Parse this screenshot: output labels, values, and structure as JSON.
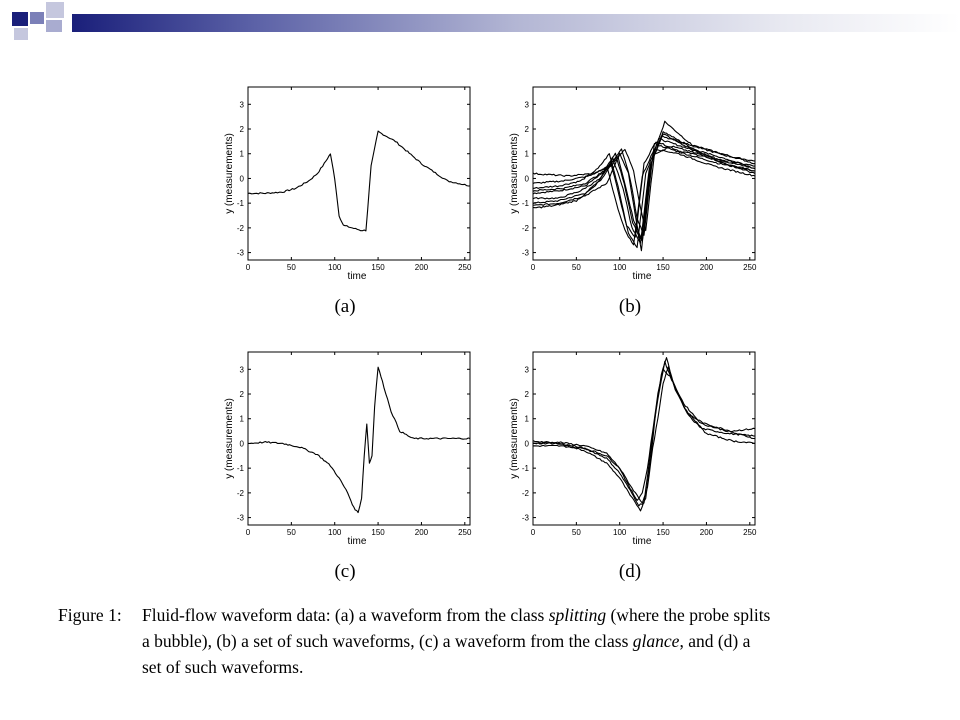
{
  "colors": {
    "header_dark": "#1a1f7a",
    "header_mid": "#7b80b8",
    "header_light": "#c5c7de",
    "ink": "#000000"
  },
  "chart_data": [
    {
      "id": "a",
      "type": "line",
      "panel_label": "(a)",
      "xlabel": "time",
      "ylabel": "y (measurements)",
      "xlim": [
        0,
        256
      ],
      "ylim": [
        -3.3,
        3.7
      ],
      "xticks": [
        0,
        50,
        100,
        150,
        200,
        250
      ],
      "yticks": [
        -3,
        -2,
        -1,
        0,
        1,
        2,
        3
      ],
      "series": [
        {
          "x": [
            0,
            20,
            40,
            55,
            70,
            80,
            88,
            95,
            100,
            105,
            110,
            120,
            130,
            136,
            142,
            150,
            170,
            200,
            230,
            256
          ],
          "y": [
            -0.6,
            -0.6,
            -0.55,
            -0.4,
            -0.1,
            0.2,
            0.6,
            1.0,
            0.0,
            -1.5,
            -1.9,
            -2.0,
            -2.1,
            -2.1,
            0.5,
            1.9,
            1.5,
            0.6,
            -0.1,
            -0.3
          ]
        }
      ]
    },
    {
      "id": "b",
      "type": "line",
      "panel_label": "(b)",
      "xlabel": "time",
      "ylabel": "y (measurements)",
      "xlim": [
        0,
        256
      ],
      "ylim": [
        -3.3,
        3.7
      ],
      "xticks": [
        0,
        50,
        100,
        150,
        200,
        250
      ],
      "yticks": [
        -3,
        -2,
        -1,
        0,
        1,
        2,
        3
      ],
      "series": [
        {
          "x": [
            0,
            30,
            60,
            80,
            95,
            105,
            115,
            125,
            135,
            150,
            180,
            220,
            256
          ],
          "y": [
            -0.6,
            -0.5,
            -0.3,
            0.2,
            1.0,
            -0.2,
            -1.8,
            -2.5,
            0.5,
            1.9,
            1.3,
            0.6,
            0.3
          ]
        },
        {
          "x": [
            0,
            30,
            60,
            80,
            90,
            100,
            110,
            120,
            130,
            145,
            180,
            220,
            256
          ],
          "y": [
            -1.0,
            -0.9,
            -0.6,
            0.0,
            0.6,
            -0.8,
            -2.2,
            -2.8,
            0.2,
            1.6,
            1.2,
            0.7,
            0.4
          ]
        },
        {
          "x": [
            0,
            30,
            55,
            75,
            88,
            98,
            108,
            118,
            128,
            142,
            170,
            210,
            256
          ],
          "y": [
            -0.4,
            -0.3,
            -0.1,
            0.4,
            1.0,
            -0.3,
            -1.9,
            -2.4,
            0.6,
            1.5,
            1.1,
            0.8,
            0.5
          ]
        },
        {
          "x": [
            0,
            30,
            60,
            85,
            100,
            110,
            118,
            125,
            132,
            140,
            175,
            215,
            256
          ],
          "y": [
            -1.1,
            -1.0,
            -0.7,
            -0.2,
            1.0,
            0.2,
            -1.5,
            -2.9,
            -0.8,
            1.4,
            1.0,
            0.6,
            0.3
          ]
        },
        {
          "x": [
            0,
            35,
            65,
            88,
            102,
            112,
            120,
            128,
            138,
            152,
            185,
            225,
            256
          ],
          "y": [
            -0.2,
            -0.1,
            0.1,
            0.5,
            1.2,
            0.0,
            -1.6,
            -2.3,
            0.9,
            2.3,
            1.3,
            0.9,
            0.7
          ]
        },
        {
          "x": [
            0,
            30,
            55,
            78,
            92,
            104,
            114,
            124,
            134,
            148,
            178,
            218,
            256
          ],
          "y": [
            -0.8,
            -0.8,
            -0.5,
            0.0,
            0.8,
            -0.4,
            -2.0,
            -2.6,
            0.4,
            1.7,
            1.4,
            1.0,
            0.6
          ]
        },
        {
          "x": [
            0,
            40,
            70,
            90,
            106,
            116,
            124,
            130,
            140,
            160,
            190,
            230,
            256
          ],
          "y": [
            0.2,
            0.1,
            0.2,
            0.5,
            1.2,
            0.3,
            -1.2,
            -2.1,
            1.0,
            1.3,
            1.0,
            0.5,
            0.2
          ]
        },
        {
          "x": [
            0,
            25,
            50,
            72,
            86,
            96,
            106,
            116,
            126,
            140,
            168,
            208,
            256
          ],
          "y": [
            -1.2,
            -1.1,
            -0.9,
            -0.3,
            0.4,
            -1.0,
            -2.1,
            -2.7,
            0.1,
            1.2,
            1.0,
            0.5,
            0.1
          ]
        },
        {
          "x": [
            0,
            35,
            60,
            82,
            98,
            108,
            116,
            126,
            136,
            150,
            182,
            222,
            256
          ],
          "y": [
            -0.5,
            -0.4,
            -0.2,
            0.3,
            0.9,
            -0.5,
            -1.7,
            -2.5,
            0.6,
            1.8,
            1.2,
            0.8,
            0.4
          ]
        }
      ]
    },
    {
      "id": "c",
      "type": "line",
      "panel_label": "(c)",
      "xlabel": "time",
      "ylabel": "y (measurements)",
      "xlim": [
        0,
        256
      ],
      "ylim": [
        -3.3,
        3.7
      ],
      "xticks": [
        0,
        50,
        100,
        150,
        200,
        250
      ],
      "yticks": [
        -3,
        -2,
        -1,
        0,
        1,
        2,
        3
      ],
      "series": [
        {
          "x": [
            0,
            20,
            40,
            60,
            80,
            95,
            105,
            115,
            122,
            127,
            131,
            134,
            137,
            140,
            143,
            146,
            150,
            155,
            165,
            175,
            190,
            210,
            230,
            256
          ],
          "y": [
            0.0,
            0.05,
            0.0,
            -0.15,
            -0.45,
            -0.9,
            -1.4,
            -2.0,
            -2.6,
            -2.8,
            -2.2,
            -0.5,
            0.8,
            -0.8,
            -0.5,
            1.5,
            3.1,
            2.5,
            1.3,
            0.5,
            0.2,
            0.2,
            0.2,
            0.2
          ]
        }
      ]
    },
    {
      "id": "d",
      "type": "line",
      "panel_label": "(d)",
      "xlabel": "time",
      "ylabel": "y (measurements)",
      "xlim": [
        0,
        256
      ],
      "ylim": [
        -3.3,
        3.7
      ],
      "xticks": [
        0,
        50,
        100,
        150,
        200,
        250
      ],
      "yticks": [
        -3,
        -2,
        -1,
        0,
        1,
        2,
        3
      ],
      "series": [
        {
          "x": [
            0,
            30,
            60,
            85,
            100,
            112,
            122,
            128,
            134,
            140,
            146,
            152,
            160,
            175,
            195,
            225,
            256
          ],
          "y": [
            0.0,
            0.0,
            -0.2,
            -0.6,
            -1.2,
            -1.9,
            -2.5,
            -2.4,
            -0.8,
            0.9,
            2.2,
            3.3,
            2.6,
            1.4,
            0.6,
            0.4,
            0.3
          ]
        },
        {
          "x": [
            0,
            30,
            60,
            85,
            100,
            112,
            124,
            130,
            136,
            142,
            148,
            154,
            162,
            178,
            198,
            228,
            256
          ],
          "y": [
            0.1,
            0.0,
            -0.3,
            -0.8,
            -1.4,
            -2.1,
            -2.7,
            -2.2,
            -0.5,
            1.4,
            2.8,
            3.5,
            2.4,
            1.2,
            0.8,
            0.5,
            0.6
          ]
        },
        {
          "x": [
            0,
            30,
            60,
            85,
            100,
            110,
            120,
            126,
            132,
            138,
            144,
            150,
            158,
            174,
            194,
            224,
            256
          ],
          "y": [
            -0.1,
            -0.1,
            -0.2,
            -0.5,
            -1.0,
            -1.7,
            -2.3,
            -2.0,
            -1.0,
            0.5,
            2.0,
            3.0,
            2.7,
            1.6,
            0.8,
            0.5,
            0.2
          ]
        },
        {
          "x": [
            0,
            30,
            60,
            85,
            100,
            114,
            126,
            132,
            138,
            144,
            150,
            156,
            164,
            180,
            200,
            230,
            256
          ],
          "y": [
            0.0,
            0.05,
            -0.1,
            -0.4,
            -1.0,
            -1.8,
            -2.4,
            -1.8,
            -0.2,
            1.0,
            2.4,
            3.1,
            2.2,
            1.1,
            0.4,
            0.1,
            0.0
          ]
        }
      ]
    }
  ],
  "caption": {
    "lead": "Figure 1:",
    "line1_a": "Fluid-flow waveform data: (a) a waveform from the class ",
    "line1_em": "splitting",
    "line1_b": " (where the probe splits",
    "line2_a": "a bubble), (b) a set of such waveforms, (c) a waveform from the class ",
    "line2_em": "glance",
    "line2_b": ", and (d) a",
    "line3": "set of such waveforms."
  }
}
